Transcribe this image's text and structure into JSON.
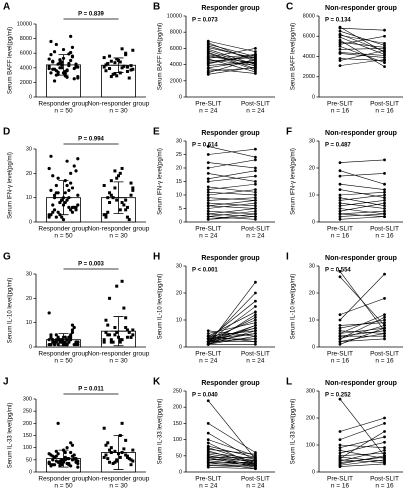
{
  "chart_data": [
    {
      "type": "bar_scatter",
      "label": "A",
      "annotation": "P = 0.839",
      "y_label": "Serum BAFF level(pg/ml)",
      "categories": [
        "Responder group",
        "Non-responder group"
      ],
      "n_labels": [
        "n = 50",
        "n = 30"
      ],
      "values": [
        4400,
        4350
      ],
      "errors": [
        1400,
        1000
      ],
      "points": [
        [
          4200,
          3800,
          5100,
          2900,
          6100,
          4500,
          3300,
          7200,
          4000,
          3600,
          5500,
          2600,
          4800,
          3100,
          6500,
          4300,
          3900,
          5200,
          2200,
          4700,
          3500,
          8300,
          4100,
          5800,
          3000,
          4400,
          3700,
          6800,
          2800,
          4900,
          3400,
          5300,
          4600,
          2500,
          3900,
          6200,
          4000,
          3200,
          5000,
          4300,
          7600,
          3600,
          4800,
          2700,
          5600,
          4100,
          3800,
          4500,
          3300,
          5900
        ],
        [
          4100,
          5600,
          3200,
          4800,
          6000,
          3700,
          4400,
          2800,
          5200,
          4000,
          3500,
          6400,
          4600,
          3100,
          5000,
          4200,
          2600,
          5400,
          3900,
          4700,
          3300,
          5800,
          4300,
          3600,
          4900,
          2900,
          6600,
          4100,
          3800,
          4500
        ]
      ],
      "ylim": [
        0,
        10000
      ],
      "yticks": [
        0,
        2000,
        4000,
        6000,
        8000,
        10000
      ]
    },
    {
      "type": "paired",
      "label": "B",
      "title": "Responder group",
      "annotation": "P = 0.073",
      "y_label": "Serum BAFF level(pg/ml)",
      "categories": [
        "Pre-SLIT",
        "Post-SLIT"
      ],
      "n_labels": [
        "n = 24",
        "n = 24"
      ],
      "pre": [
        5200,
        4800,
        6500,
        3900,
        5700,
        4400,
        6900,
        3200,
        5000,
        4600,
        6100,
        3600,
        5400,
        4200,
        6700,
        2800,
        4900,
        5900,
        3500,
        6300,
        4100,
        5500,
        3000,
        4700
      ],
      "post": [
        4100,
        5200,
        5000,
        4300,
        3800,
        4900,
        5600,
        3600,
        4200,
        3900,
        4800,
        4500,
        3300,
        5100,
        4400,
        3700,
        6000,
        4000,
        2900,
        4600,
        5300,
        3500,
        4700,
        3100
      ],
      "ylim": [
        0,
        10000
      ],
      "yticks": [
        0,
        2000,
        4000,
        6000,
        8000,
        10000
      ]
    },
    {
      "type": "paired",
      "label": "C",
      "title": "Non-responder group",
      "annotation": "P = 0.134",
      "y_label": "Serum BAFF level(pg/ml)",
      "categories": [
        "Pre-SLIT",
        "Post-SLIT"
      ],
      "n_labels": [
        "n = 16",
        "n = 16"
      ],
      "pre": [
        6200,
        5400,
        6800,
        4300,
        5900,
        3600,
        6500,
        5000,
        4700,
        6100,
        3100,
        5600,
        4400,
        6900,
        5200,
        3800
      ],
      "post": [
        4500,
        4900,
        6600,
        3900,
        4200,
        4600,
        5100,
        3400,
        4800,
        5300,
        3700,
        3000,
        4100,
        4400,
        6000,
        3600
      ],
      "ylim": [
        0,
        8000
      ],
      "yticks": [
        0,
        2000,
        4000,
        6000,
        8000
      ]
    },
    {
      "type": "bar_scatter",
      "label": "D",
      "annotation": "P = 0.994",
      "y_label": "Serum IFN-γ level(pg/ml)",
      "categories": [
        "Responder group",
        "Non-responder group"
      ],
      "n_labels": [
        "n = 50",
        "n = 30"
      ],
      "values": [
        10,
        10
      ],
      "errors": [
        7,
        6.5
      ],
      "points": [
        [
          2,
          5,
          8,
          12,
          20,
          6,
          3,
          15,
          9,
          25,
          4,
          11,
          7,
          18,
          1,
          13,
          6,
          22,
          10,
          3,
          8,
          16,
          5,
          27,
          12,
          2,
          9,
          14,
          7,
          19,
          4,
          10,
          6,
          23,
          3,
          11,
          8,
          17,
          5,
          21,
          13,
          2,
          9,
          15,
          6,
          26,
          4,
          12,
          7,
          10
        ],
        [
          3,
          8,
          14,
          20,
          5,
          11,
          2,
          17,
          9,
          22,
          6,
          13,
          4,
          10,
          19,
          7,
          1,
          15,
          12,
          21,
          5,
          9,
          16,
          3,
          11,
          18,
          8,
          2,
          14,
          10
        ]
      ],
      "ylim": [
        0,
        30
      ],
      "yticks": [
        0,
        10,
        20,
        30
      ]
    },
    {
      "type": "paired",
      "label": "E",
      "title": "Responder group",
      "annotation": "P = 0.614",
      "y_label": "Serum IFN-γ level(pg/ml)",
      "categories": [
        "Pre-SLIT",
        "Post-SLIT"
      ],
      "n_labels": [
        "n = 24",
        "n = 24"
      ],
      "pre": [
        28,
        25,
        22,
        20,
        18,
        16,
        15,
        13,
        12,
        11,
        10,
        9,
        8,
        7,
        6,
        6,
        5,
        4,
        3,
        3,
        2,
        2,
        1,
        1
      ],
      "post": [
        24,
        27,
        20,
        23,
        15,
        19,
        17,
        11,
        14,
        10,
        12,
        8,
        9,
        6,
        8,
        5,
        7,
        3,
        5,
        2,
        4,
        1,
        3,
        2
      ],
      "ylim": [
        0,
        30
      ],
      "yticks": [
        0,
        5,
        10,
        15,
        20,
        25,
        30
      ]
    },
    {
      "type": "paired",
      "label": "F",
      "title": "Non-responder group",
      "annotation": "P = 0.487",
      "y_label": "Serum IFN-γ level(pg/ml)",
      "categories": [
        "Pre-SLIT",
        "Post-SLIT"
      ],
      "n_labels": [
        "n = 16",
        "n = 16"
      ],
      "pre": [
        22,
        19,
        17,
        14,
        12,
        10,
        9,
        8,
        7,
        6,
        5,
        4,
        3,
        3,
        2,
        1
      ],
      "post": [
        23,
        14,
        18,
        12,
        9,
        11,
        6,
        10,
        5,
        8,
        3,
        7,
        4,
        2,
        3,
        2
      ],
      "ylim": [
        0,
        30
      ],
      "yticks": [
        0,
        10,
        20,
        30
      ]
    },
    {
      "type": "bar_scatter",
      "label": "G",
      "annotation": "P = 0.003",
      "y_label": "Serum IL-10 level(pg/ml)",
      "categories": [
        "Responder group",
        "Non-responder group"
      ],
      "n_labels": [
        "n = 50",
        "n = 30"
      ],
      "values": [
        3,
        6.5
      ],
      "errors": [
        2.5,
        6
      ],
      "points": [
        [
          1,
          2,
          3,
          2,
          4,
          1,
          5,
          2,
          3,
          1,
          6,
          2,
          3,
          4,
          1,
          2,
          8,
          3,
          1,
          2,
          4,
          3,
          2,
          1,
          5,
          2,
          3,
          7,
          1,
          2,
          3,
          4,
          2,
          1,
          14,
          2,
          3,
          1,
          5,
          2,
          4,
          3,
          2,
          1,
          9,
          2,
          3,
          1,
          2,
          4
        ],
        [
          2,
          5,
          8,
          3,
          12,
          4,
          6,
          2,
          25,
          3,
          7,
          5,
          9,
          2,
          4,
          16,
          6,
          3,
          20,
          5,
          2,
          8,
          4,
          11,
          3,
          6,
          27,
          4,
          7,
          5
        ]
      ],
      "ylim": [
        0,
        30
      ],
      "yticks": [
        0,
        10,
        20,
        30
      ]
    },
    {
      "type": "paired",
      "label": "H",
      "title": "Responder group",
      "annotation": "P < 0.001",
      "y_label": "Serum IL-10 level(pg/ml)",
      "categories": [
        "Pre-SLIT",
        "Post-SLIT"
      ],
      "n_labels": [
        "n = 24",
        "n = 24"
      ],
      "pre": [
        1,
        2,
        3,
        2,
        4,
        1,
        2,
        3,
        5,
        2,
        1,
        3,
        2,
        4,
        1,
        3,
        2,
        6,
        1,
        2,
        3,
        2,
        4,
        1
      ],
      "post": [
        24,
        20,
        17,
        15,
        13,
        12,
        11,
        10,
        9,
        8,
        8,
        7,
        7,
        6,
        6,
        5,
        5,
        4,
        4,
        3,
        3,
        2,
        2,
        1
      ],
      "ylim": [
        0,
        30
      ],
      "yticks": [
        0,
        10,
        20,
        30
      ]
    },
    {
      "type": "paired",
      "label": "I",
      "title": "Non-responder group",
      "annotation": "P = 0.554",
      "y_label": "Serum IL-10 level(pg/ml)",
      "categories": [
        "Pre-SLIT",
        "Post-SLIT"
      ],
      "n_labels": [
        "n = 16",
        "n = 16"
      ],
      "pre": [
        28,
        26,
        12,
        10,
        8,
        7,
        6,
        5,
        5,
        4,
        4,
        3,
        3,
        2,
        2,
        1
      ],
      "post": [
        6,
        8,
        18,
        27,
        9,
        10,
        5,
        12,
        7,
        6,
        4,
        8,
        11,
        5,
        3,
        7
      ],
      "ylim": [
        0,
        30
      ],
      "yticks": [
        0,
        10,
        20,
        30
      ]
    },
    {
      "type": "bar_scatter",
      "label": "J",
      "annotation": "P = 0.011",
      "y_label": "Serum IL-33 level(pg/ml)",
      "categories": [
        "Responder group",
        "Non-responder group"
      ],
      "n_labels": [
        "n = 50",
        "n = 30"
      ],
      "values": [
        55,
        80
      ],
      "errors": [
        35,
        70
      ],
      "points": [
        [
          40,
          60,
          35,
          80,
          25,
          55,
          70,
          45,
          30,
          100,
          50,
          20,
          65,
          40,
          90,
          35,
          55,
          75,
          30,
          45,
          60,
          120,
          40,
          25,
          85,
          50,
          35,
          65,
          45,
          30,
          200,
          40,
          55,
          70,
          35,
          60,
          25,
          50,
          80,
          45,
          30,
          65,
          40,
          55,
          110,
          35,
          50,
          75,
          45,
          30
        ],
        [
          60,
          90,
          40,
          150,
          70,
          30,
          110,
          80,
          50,
          200,
          65,
          45,
          120,
          35,
          75,
          95,
          55,
          180,
          40,
          85,
          60,
          130,
          50,
          70,
          100,
          45,
          80,
          60,
          90,
          55
        ]
      ],
      "ylim": [
        0,
        300
      ],
      "yticks": [
        0,
        50,
        100,
        150,
        200,
        250,
        300
      ]
    },
    {
      "type": "paired",
      "label": "K",
      "title": "Responder group",
      "annotation": "P = 0.040",
      "y_label": "Serum IL-33 level(pg/ml)",
      "categories": [
        "Pre-SLIT",
        "Post-SLIT"
      ],
      "n_labels": [
        "n = 24",
        "n = 24"
      ],
      "pre": [
        220,
        150,
        120,
        100,
        90,
        80,
        75,
        70,
        65,
        60,
        55,
        50,
        50,
        45,
        45,
        40,
        40,
        35,
        30,
        30,
        25,
        20,
        20,
        15
      ],
      "post": [
        40,
        60,
        35,
        50,
        20,
        45,
        30,
        55,
        25,
        40,
        35,
        30,
        20,
        45,
        15,
        25,
        35,
        20,
        30,
        10,
        25,
        15,
        20,
        10
      ],
      "ylim": [
        0,
        250
      ],
      "yticks": [
        0,
        50,
        100,
        150,
        200,
        250
      ]
    },
    {
      "type": "paired",
      "label": "L",
      "title": "Non-responder group",
      "annotation": "P = 0.252",
      "y_label": "Serum IL-33 level(pg/ml)",
      "categories": [
        "Pre-SLIT",
        "Post-SLIT"
      ],
      "n_labels": [
        "n = 16",
        "n = 16"
      ],
      "pre": [
        270,
        150,
        120,
        100,
        90,
        80,
        70,
        60,
        55,
        50,
        45,
        40,
        35,
        30,
        25,
        20
      ],
      "post": [
        60,
        200,
        180,
        90,
        130,
        50,
        110,
        70,
        40,
        150,
        35,
        80,
        55,
        60,
        45,
        30
      ],
      "ylim": [
        0,
        300
      ],
      "yticks": [
        0,
        100,
        200,
        300
      ]
    }
  ]
}
